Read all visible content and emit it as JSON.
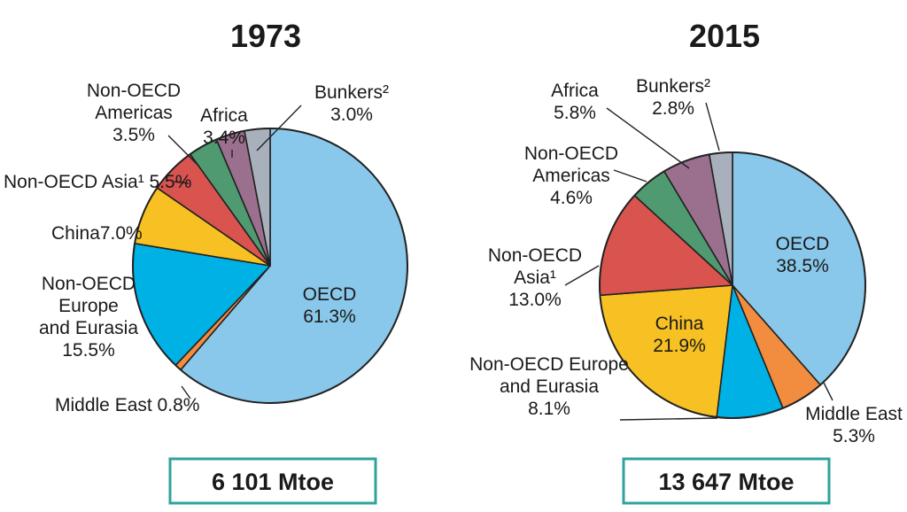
{
  "chart_data": [
    {
      "type": "pie",
      "title": "1973",
      "total_label": "6 101 Mtoe",
      "slices": [
        {
          "key": "oecd",
          "label": "OECD",
          "value": 61.3,
          "value_label": "61.3%",
          "color": "#89c8ea"
        },
        {
          "key": "middle-east",
          "label": "Middle East",
          "value": 0.8,
          "value_label": "0.8%",
          "color": "#f28c3e"
        },
        {
          "key": "non-oecd-europe-eurasia",
          "label": "Non-OECD Europe and Eurasia",
          "value": 15.5,
          "value_label": "15.5%",
          "color": "#00b1e6"
        },
        {
          "key": "china",
          "label": "China",
          "value": 7.0,
          "value_label": "7.0%",
          "color": "#f7c023"
        },
        {
          "key": "non-oecd-asia",
          "label": "Non-OECD Asia¹",
          "value": 5.5,
          "value_label": "5.5%",
          "color": "#d9534f"
        },
        {
          "key": "non-oecd-americas",
          "label": "Non-OECD Americas",
          "value": 3.5,
          "value_label": "3.5%",
          "color": "#4f9a70"
        },
        {
          "key": "africa",
          "label": "Africa",
          "value": 3.4,
          "value_label": "3.4%",
          "color": "#9b6f8e"
        },
        {
          "key": "bunkers",
          "label": "Bunkers²",
          "value": 3.0,
          "value_label": "3.0%",
          "color": "#a8b1bb"
        }
      ]
    },
    {
      "type": "pie",
      "title": "2015",
      "total_label": "13 647 Mtoe",
      "slices": [
        {
          "key": "oecd",
          "label": "OECD",
          "value": 38.5,
          "value_label": "38.5%",
          "color": "#89c8ea"
        },
        {
          "key": "middle-east",
          "label": "Middle East",
          "value": 5.3,
          "value_label": "5.3%",
          "color": "#f28c3e"
        },
        {
          "key": "non-oecd-europe-eurasia",
          "label": "Non-OECD Europe and Eurasia",
          "value": 8.1,
          "value_label": "8.1%",
          "color": "#00b1e6"
        },
        {
          "key": "china",
          "label": "China",
          "value": 21.9,
          "value_label": "21.9%",
          "color": "#f7c023"
        },
        {
          "key": "non-oecd-asia",
          "label": "Non-OECD Asia¹",
          "value": 13.0,
          "value_label": "13.0%",
          "color": "#d9534f"
        },
        {
          "key": "non-oecd-americas",
          "label": "Non-OECD Americas",
          "value": 4.6,
          "value_label": "4.6%",
          "color": "#4f9a70"
        },
        {
          "key": "africa",
          "label": "Africa",
          "value": 5.8,
          "value_label": "5.8%",
          "color": "#9b6f8e"
        },
        {
          "key": "bunkers",
          "label": "Bunkers²",
          "value": 2.8,
          "value_label": "2.8%",
          "color": "#a8b1bb"
        }
      ]
    }
  ]
}
